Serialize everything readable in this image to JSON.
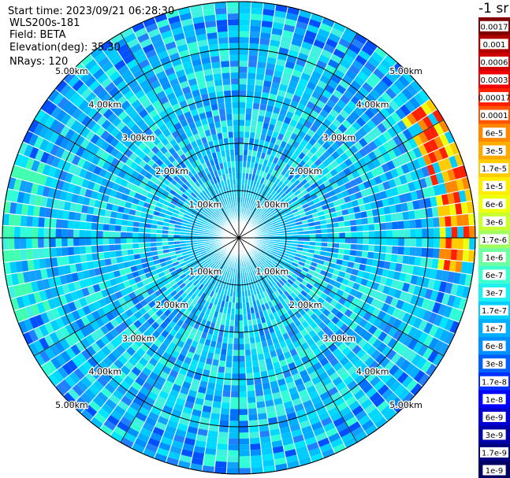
{
  "info": {
    "start_time": "Start time: 2023/09/21 06:28:30",
    "instrument": "WLS200s-181",
    "field": "Field: BETA",
    "elevation": "Elevation(deg): 35.30",
    "nrays": "NRays: 120"
  },
  "colorbar": {
    "title": "-1 sr",
    "labels": [
      "0.0017",
      "0.001",
      "0.0006",
      "0.0003",
      "0.00017",
      "0.0001",
      "6e-5",
      "3e-5",
      "1.7e-5",
      "1e-5",
      "6e-6",
      "3e-6",
      "1.7e-6",
      "1e-6",
      "6e-7",
      "3e-7",
      "1.7e-7",
      "1e-7",
      "6e-8",
      "3e-8",
      "1.7e-8",
      "1e-8",
      "6e-9",
      "3e-9",
      "1.7e-9",
      "1e-9"
    ],
    "colors": [
      "#800000",
      "#b00000",
      "#d00000",
      "#f00000",
      "#ff2000",
      "#ff5500",
      "#ff8800",
      "#ffaa00",
      "#ffcc00",
      "#ffee00",
      "#eeff10",
      "#c8ff30",
      "#a0ff60",
      "#70ffa0",
      "#40ffd0",
      "#20f0f0",
      "#00d0ff",
      "#00b0ff",
      "#0090ff",
      "#0060ff",
      "#0030ff",
      "#0000ff",
      "#0000d0",
      "#0000a8",
      "#000080",
      "#000060"
    ]
  },
  "chart_data": {
    "type": "heatmap",
    "projection": "polar (PPI scan)",
    "nrays": 120,
    "range_rings_km": [
      1,
      2,
      3,
      4,
      5
    ],
    "ring_labels": [
      "1.00km",
      "2.00km",
      "3.00km",
      "4.00km",
      "5.00km"
    ],
    "max_range_km": 5.0,
    "dominant_value": "approximately 1e-7 to 6e-8 (cyan/light blue)",
    "notable_features": "higher backscatter (3e-6 to 3e-5, yellow-red) near east edge at 4.5-5 km; slightly elevated values (~1.7e-7) in west/southwest sector"
  }
}
